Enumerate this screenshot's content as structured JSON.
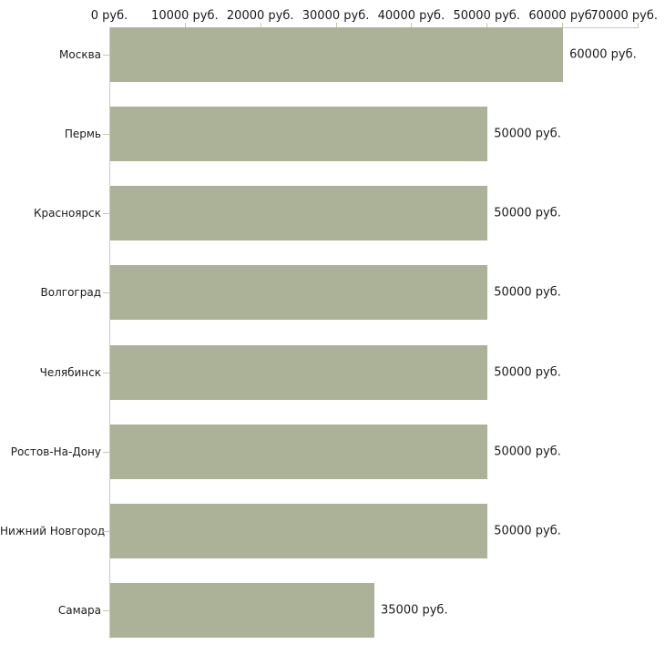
{
  "page": {
    "background_color": "#ffffff"
  },
  "chart_data": {
    "type": "bar",
    "orientation": "horizontal",
    "title": "",
    "xlabel": "",
    "ylabel": "",
    "unit": "руб.",
    "grid": false,
    "legend": false,
    "xlim": [
      0,
      70000
    ],
    "categories": [
      "Москва",
      "Пермь",
      "Красноярск",
      "Волгоград",
      "Челябинск",
      "Ростов-На-Дону",
      "Нижний Новгород",
      "Самара"
    ],
    "values": [
      60000,
      50000,
      50000,
      50000,
      50000,
      50000,
      50000,
      35000
    ],
    "value_labels": [
      "60000 руб.",
      "50000 руб.",
      "50000 руб.",
      "50000 руб.",
      "50000 руб.",
      "50000 руб.",
      "50000 руб.",
      "35000 руб."
    ],
    "x_tick_values": [
      0,
      10000,
      20000,
      30000,
      40000,
      50000,
      60000,
      70000
    ],
    "x_tick_labels": [
      "0 руб.",
      "10000 руб.",
      "20000 руб.",
      "30000 руб.",
      "40000 руб.",
      "50000 руб.",
      "60000 руб.",
      "70000 руб."
    ],
    "colors": {
      "bar": "#acb297",
      "axis": "#c8c8c8",
      "tick": "#cfc5a5",
      "text": "#1a1a1a"
    }
  }
}
